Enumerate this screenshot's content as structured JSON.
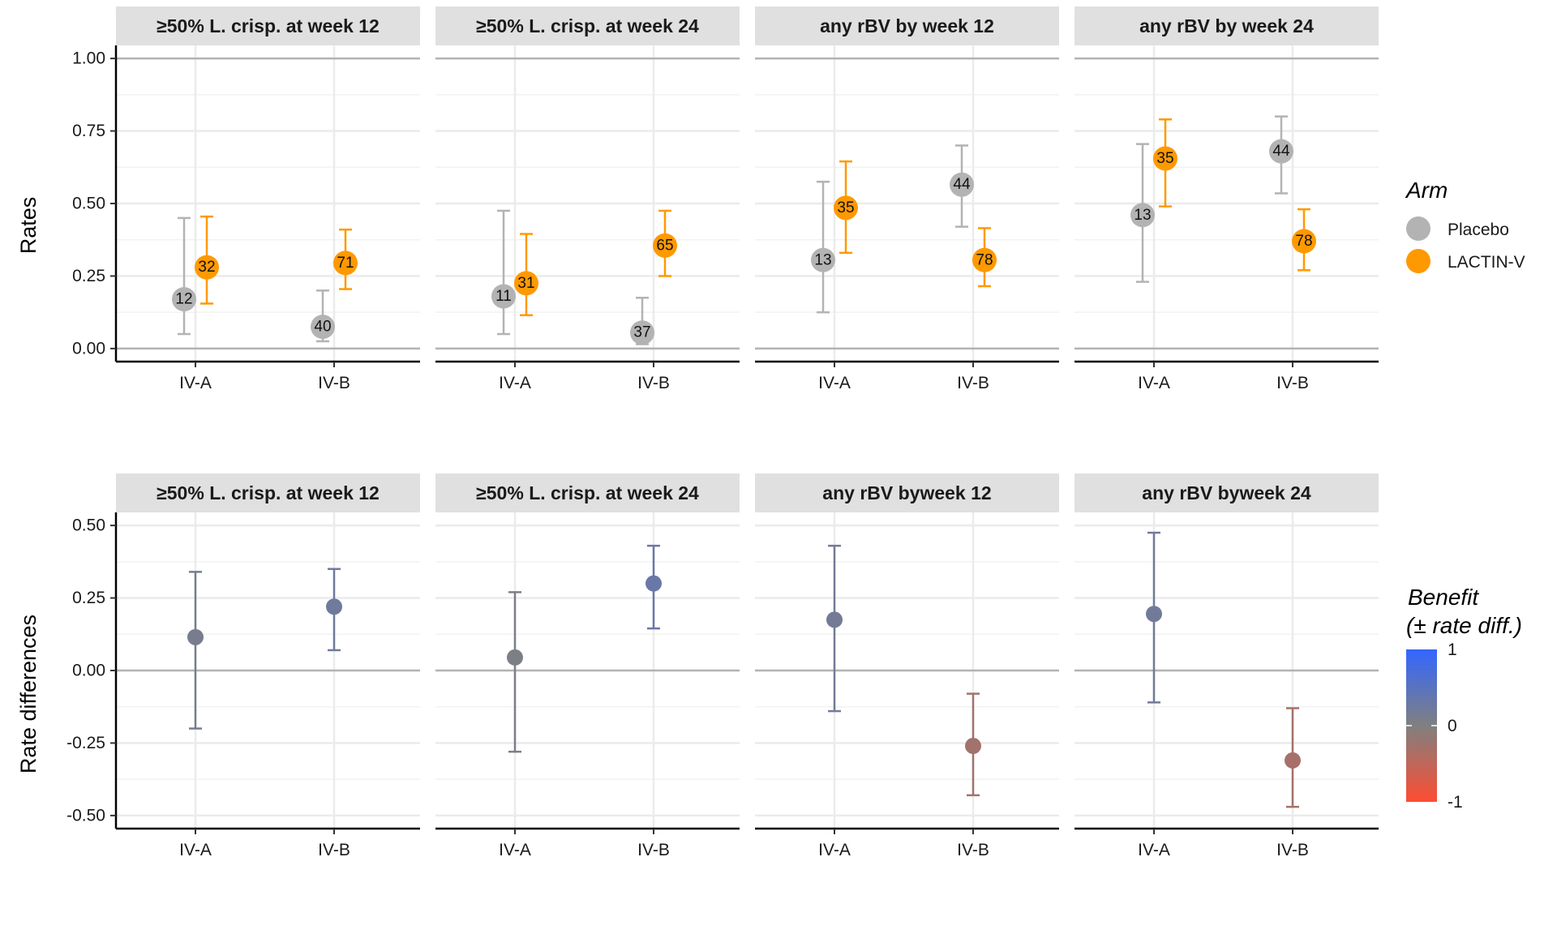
{
  "chart_data": [
    {
      "type": "scatter",
      "ylabel": "Rates",
      "ylim": [
        0,
        1
      ],
      "yticks": [
        "0.00",
        "0.25",
        "0.50",
        "0.75",
        "1.00"
      ],
      "categories": [
        "IV-A",
        "IV-B"
      ],
      "reference_lines": [
        0,
        1
      ],
      "series_names": [
        "Placebo",
        "LACTIN-V"
      ],
      "series_colors": {
        "Placebo": "#b3b3b3",
        "LACTIN-V": "#ff9900"
      },
      "panels": [
        {
          "title": "≥50% L. crisp. at week 12",
          "series": [
            {
              "name": "Placebo",
              "points": [
                {
                  "category": "IV-A",
                  "value": 0.17,
                  "lower": 0.05,
                  "upper": 0.45,
                  "n": "12"
                },
                {
                  "category": "IV-B",
                  "value": 0.075,
                  "lower": 0.025,
                  "upper": 0.2,
                  "n": "40"
                }
              ]
            },
            {
              "name": "LACTIN-V",
              "points": [
                {
                  "category": "IV-A",
                  "value": 0.28,
                  "lower": 0.155,
                  "upper": 0.455,
                  "n": "32"
                },
                {
                  "category": "IV-B",
                  "value": 0.295,
                  "lower": 0.205,
                  "upper": 0.41,
                  "n": "71"
                }
              ]
            }
          ]
        },
        {
          "title": "≥50% L. crisp. at week 24",
          "series": [
            {
              "name": "Placebo",
              "points": [
                {
                  "category": "IV-A",
                  "value": 0.18,
                  "lower": 0.05,
                  "upper": 0.475,
                  "n": "11"
                },
                {
                  "category": "IV-B",
                  "value": 0.055,
                  "lower": 0.015,
                  "upper": 0.175,
                  "n": "37"
                }
              ]
            },
            {
              "name": "LACTIN-V",
              "points": [
                {
                  "category": "IV-A",
                  "value": 0.225,
                  "lower": 0.115,
                  "upper": 0.395,
                  "n": "31"
                },
                {
                  "category": "IV-B",
                  "value": 0.355,
                  "lower": 0.25,
                  "upper": 0.475,
                  "n": "65"
                }
              ]
            }
          ]
        },
        {
          "title": "any rBV by week 12",
          "series": [
            {
              "name": "Placebo",
              "points": [
                {
                  "category": "IV-A",
                  "value": 0.305,
                  "lower": 0.125,
                  "upper": 0.575,
                  "n": "13"
                },
                {
                  "category": "IV-B",
                  "value": 0.565,
                  "lower": 0.42,
                  "upper": 0.7,
                  "n": "44"
                }
              ]
            },
            {
              "name": "LACTIN-V",
              "points": [
                {
                  "category": "IV-A",
                  "value": 0.485,
                  "lower": 0.33,
                  "upper": 0.645,
                  "n": "35"
                },
                {
                  "category": "IV-B",
                  "value": 0.305,
                  "lower": 0.215,
                  "upper": 0.415,
                  "n": "78"
                }
              ]
            }
          ]
        },
        {
          "title": "any rBV by week 24",
          "series": [
            {
              "name": "Placebo",
              "points": [
                {
                  "category": "IV-A",
                  "value": 0.46,
                  "lower": 0.23,
                  "upper": 0.705,
                  "n": "13"
                },
                {
                  "category": "IV-B",
                  "value": 0.68,
                  "lower": 0.535,
                  "upper": 0.8,
                  "n": "44"
                }
              ]
            },
            {
              "name": "LACTIN-V",
              "points": [
                {
                  "category": "IV-A",
                  "value": 0.655,
                  "lower": 0.49,
                  "upper": 0.79,
                  "n": "35"
                },
                {
                  "category": "IV-B",
                  "value": 0.37,
                  "lower": 0.27,
                  "upper": 0.48,
                  "n": "78"
                }
              ]
            }
          ]
        }
      ]
    },
    {
      "type": "scatter",
      "ylabel": "Rate differences",
      "ylim": [
        -0.5,
        0.5
      ],
      "yticks": [
        "-0.50",
        "-0.25",
        "0.00",
        "0.25",
        "0.50"
      ],
      "categories": [
        "IV-A",
        "IV-B"
      ],
      "reference_lines": [
        0
      ],
      "color_scale": {
        "low": -1,
        "mid": 0,
        "high": 1,
        "low_color": "#ff4d33",
        "mid_color": "#808080",
        "high_color": "#3366ff"
      },
      "panels": [
        {
          "title": "≥50% L. crisp. at week 12",
          "points": [
            {
              "category": "IV-A",
              "value": 0.115,
              "lower": -0.2,
              "upper": 0.34
            },
            {
              "category": "IV-B",
              "value": 0.22,
              "lower": 0.07,
              "upper": 0.35
            }
          ]
        },
        {
          "title": "≥50% L. crisp. at week 24",
          "points": [
            {
              "category": "IV-A",
              "value": 0.045,
              "lower": -0.28,
              "upper": 0.27
            },
            {
              "category": "IV-B",
              "value": 0.3,
              "lower": 0.145,
              "upper": 0.43
            }
          ]
        },
        {
          "title": "any rBV byweek 12",
          "points": [
            {
              "category": "IV-A",
              "value": 0.175,
              "lower": -0.14,
              "upper": 0.43
            },
            {
              "category": "IV-B",
              "value": -0.26,
              "lower": -0.43,
              "upper": -0.08
            }
          ]
        },
        {
          "title": "any rBV byweek 24",
          "points": [
            {
              "category": "IV-A",
              "value": 0.195,
              "lower": -0.11,
              "upper": 0.475
            },
            {
              "category": "IV-B",
              "value": -0.31,
              "lower": -0.47,
              "upper": -0.13
            }
          ]
        }
      ]
    }
  ],
  "legend": {
    "arm": {
      "title": "Arm",
      "entries": [
        "Placebo",
        "LACTIN-V"
      ]
    },
    "benefit": {
      "title_line1": "Benefit",
      "title_line2": "(± rate diff.)",
      "labels": [
        "1",
        "0",
        "-1"
      ]
    }
  }
}
